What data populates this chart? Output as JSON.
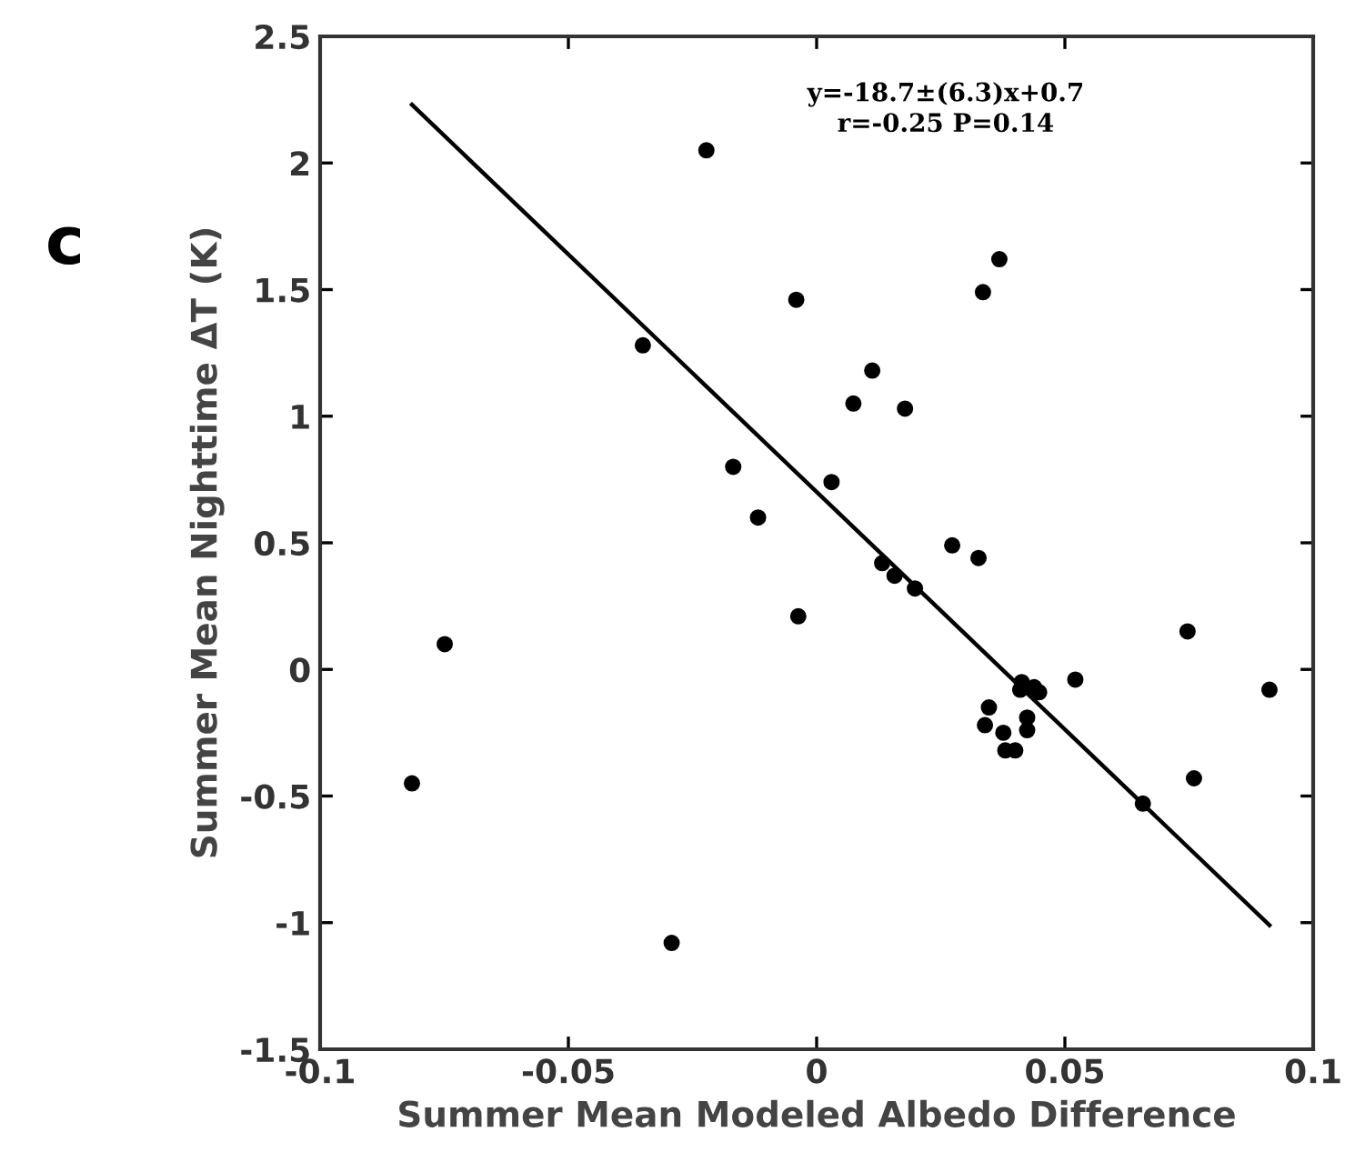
{
  "chart_data": {
    "type": "scatter",
    "xlabel": "Summer Mean Modeled Albedo Difference",
    "ylabel": "Summer Mean Nighttime ΔT (K)",
    "annotations": [
      "c",
      "y=-18.7±(6.3)x+0.7\nr=-0.25 P=0.14"
    ],
    "xlim": [
      -0.1,
      0.1
    ],
    "ylim": [
      -1.5,
      2.5
    ],
    "xticks": [
      -0.1,
      -0.05,
      0,
      0.05,
      0.1
    ],
    "yticks": [
      -1.5,
      -1,
      -0.5,
      0,
      0.5,
      1,
      1.5,
      2,
      2.5
    ],
    "grid": false,
    "marker": "circle",
    "series": [
      {
        "color": "#000000",
        "x": [
          -0.0222,
          0.0368,
          0.0335,
          -0.0041,
          -0.035,
          0.0112,
          0.0074,
          0.0178,
          -0.0168,
          0.003,
          -0.0118,
          0.0273,
          0.0326,
          0.0132,
          0.0157,
          0.0198,
          -0.0037,
          -0.0749,
          0.0747,
          0.0521,
          0.0912,
          0.0413,
          0.041,
          0.0438,
          0.0448,
          0.0347,
          0.0339,
          0.0376,
          0.0424,
          0.0424,
          0.038,
          0.04,
          -0.0815,
          0.076,
          0.0657,
          -0.0292
        ],
        "values": [
          2.05,
          1.62,
          1.49,
          1.46,
          1.28,
          1.18,
          1.05,
          1.03,
          0.8,
          0.74,
          0.6,
          0.49,
          0.44,
          0.42,
          0.37,
          0.32,
          0.21,
          0.1,
          0.15,
          -0.04,
          -0.08,
          -0.05,
          -0.08,
          -0.07,
          -0.09,
          -0.15,
          -0.22,
          -0.25,
          -0.19,
          -0.24,
          -0.32,
          -0.32,
          -0.45,
          -0.43,
          -0.53,
          -1.08
        ]
      },
      {
        "type": "line",
        "color": "#000000",
        "marker": "none",
        "line_style": "solid",
        "x": [
          -0.0815,
          0.0912
        ],
        "values": [
          2.23,
          -1.01
        ]
      }
    ]
  }
}
